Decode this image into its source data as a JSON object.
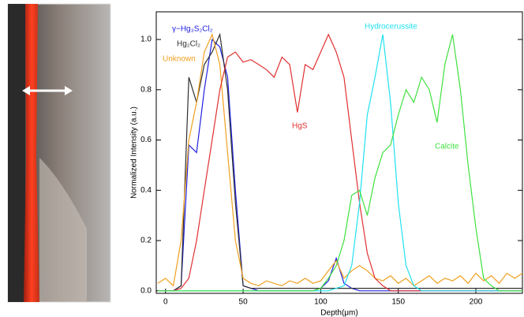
{
  "chart_data": {
    "type": "line",
    "xlabel": "Depth(μm)",
    "ylabel": "Normalized Intensity (a.u.)",
    "xlim": [
      -6,
      230
    ],
    "ylim": [
      -0.01,
      1.11
    ],
    "xticks": [
      0,
      50,
      100,
      150,
      200
    ],
    "yticks": [
      {
        "value": 0,
        "label": "0.0"
      },
      0.2,
      0.4,
      0.6,
      0.8,
      {
        "value": 1,
        "label": "1.0"
      }
    ],
    "x": [
      -5,
      0,
      5,
      10,
      15,
      20,
      25,
      30,
      35,
      40,
      45,
      50,
      55,
      60,
      65,
      70,
      75,
      80,
      85,
      90,
      95,
      100,
      105,
      110,
      115,
      120,
      125,
      130,
      135,
      140,
      145,
      150,
      155,
      160,
      165,
      170,
      175,
      180,
      185,
      190,
      195,
      200,
      205,
      210,
      215,
      220,
      225,
      230
    ],
    "series": [
      {
        "name": "γ−Hg₃S₂Cl₂",
        "color": "#2020e0",
        "values": [
          0,
          0,
          0,
          0.02,
          0.58,
          0.55,
          0.8,
          1.0,
          0.97,
          0.85,
          0.4,
          0.02,
          0.01,
          0,
          0,
          0,
          0,
          0,
          0,
          0,
          0,
          0.01,
          0.04,
          0.13,
          0.03,
          0.01,
          0,
          0,
          0,
          0,
          0,
          0,
          0,
          0,
          0,
          0,
          0,
          0,
          0,
          0,
          0,
          0,
          0,
          0,
          0,
          0,
          0,
          0
        ]
      },
      {
        "name": "Hg₂Cl₂",
        "color": "#303030",
        "values": [
          0,
          0,
          0,
          0.02,
          0.85,
          0.75,
          0.9,
          0.95,
          1.02,
          0.8,
          0.35,
          0.02,
          0.01,
          0.01,
          0.01,
          0.01,
          0.01,
          0.01,
          0.01,
          0.01,
          0.01,
          0.01,
          0.01,
          0.01,
          0.01,
          0.01,
          0.01,
          0.01,
          0.01,
          0.01,
          0.01,
          0.01,
          0.01,
          0.01,
          0.01,
          0.01,
          0.01,
          0.01,
          0.01,
          0.01,
          0.01,
          0.01,
          0.01,
          0.01,
          0.01,
          0.01,
          0.01,
          0.01
        ]
      },
      {
        "name": "Unknown",
        "color": "#f0a020",
        "values": [
          0.03,
          0.05,
          0.02,
          0.2,
          0.6,
          0.75,
          0.95,
          1.02,
          0.9,
          0.55,
          0.2,
          0.05,
          0.03,
          0.02,
          0.04,
          0.03,
          0.02,
          0.04,
          0.03,
          0.05,
          0.03,
          0.04,
          0.08,
          0.12,
          0.05,
          0.08,
          0.1,
          0.08,
          0.05,
          0.04,
          0.06,
          0.03,
          0.05,
          0.02,
          0.04,
          0.06,
          0.03,
          0.05,
          0.04,
          0.06,
          0.03,
          0.07,
          0.04,
          0.06,
          0.03,
          0.07,
          0.05,
          0.07
        ]
      },
      {
        "name": "HgS",
        "color": "#e03030",
        "values": [
          0,
          0,
          0,
          0.01,
          0.05,
          0.2,
          0.4,
          0.6,
          0.8,
          0.93,
          0.95,
          0.91,
          0.92,
          0.9,
          0.88,
          0.85,
          0.93,
          0.9,
          0.71,
          0.9,
          0.88,
          0.95,
          1.02,
          0.95,
          0.85,
          0.6,
          0.35,
          0.15,
          0.05,
          0.02,
          0,
          0,
          0,
          0,
          0,
          0,
          0,
          0,
          0,
          0,
          0,
          0,
          0,
          0,
          0,
          0,
          0,
          0
        ]
      },
      {
        "name": "Hydrocerussite",
        "color": "#20e0f0",
        "values": [
          0,
          0,
          0,
          0,
          0,
          0,
          0,
          0,
          0,
          0,
          0,
          0,
          0,
          0,
          0,
          0,
          0,
          0,
          0,
          0,
          0,
          0,
          0,
          0.01,
          0.02,
          0.1,
          0.35,
          0.7,
          0.85,
          1.02,
          0.75,
          0.35,
          0.1,
          0.02,
          0,
          0,
          0,
          0,
          0,
          0,
          0,
          0,
          0,
          0,
          0,
          0,
          0,
          0
        ]
      },
      {
        "name": "Calcite",
        "color": "#40e040",
        "values": [
          0,
          0,
          0,
          0,
          0,
          0,
          0,
          0,
          0,
          0,
          0,
          0,
          0,
          0,
          0,
          0,
          0,
          0,
          0,
          0,
          0,
          0.01,
          0.05,
          0.1,
          0.2,
          0.38,
          0.4,
          0.3,
          0.45,
          0.55,
          0.58,
          0.7,
          0.8,
          0.75,
          0.85,
          0.8,
          0.67,
          0.9,
          1.02,
          0.8,
          0.5,
          0.25,
          0.05,
          0.02,
          0,
          0,
          0,
          0
        ]
      }
    ]
  }
}
